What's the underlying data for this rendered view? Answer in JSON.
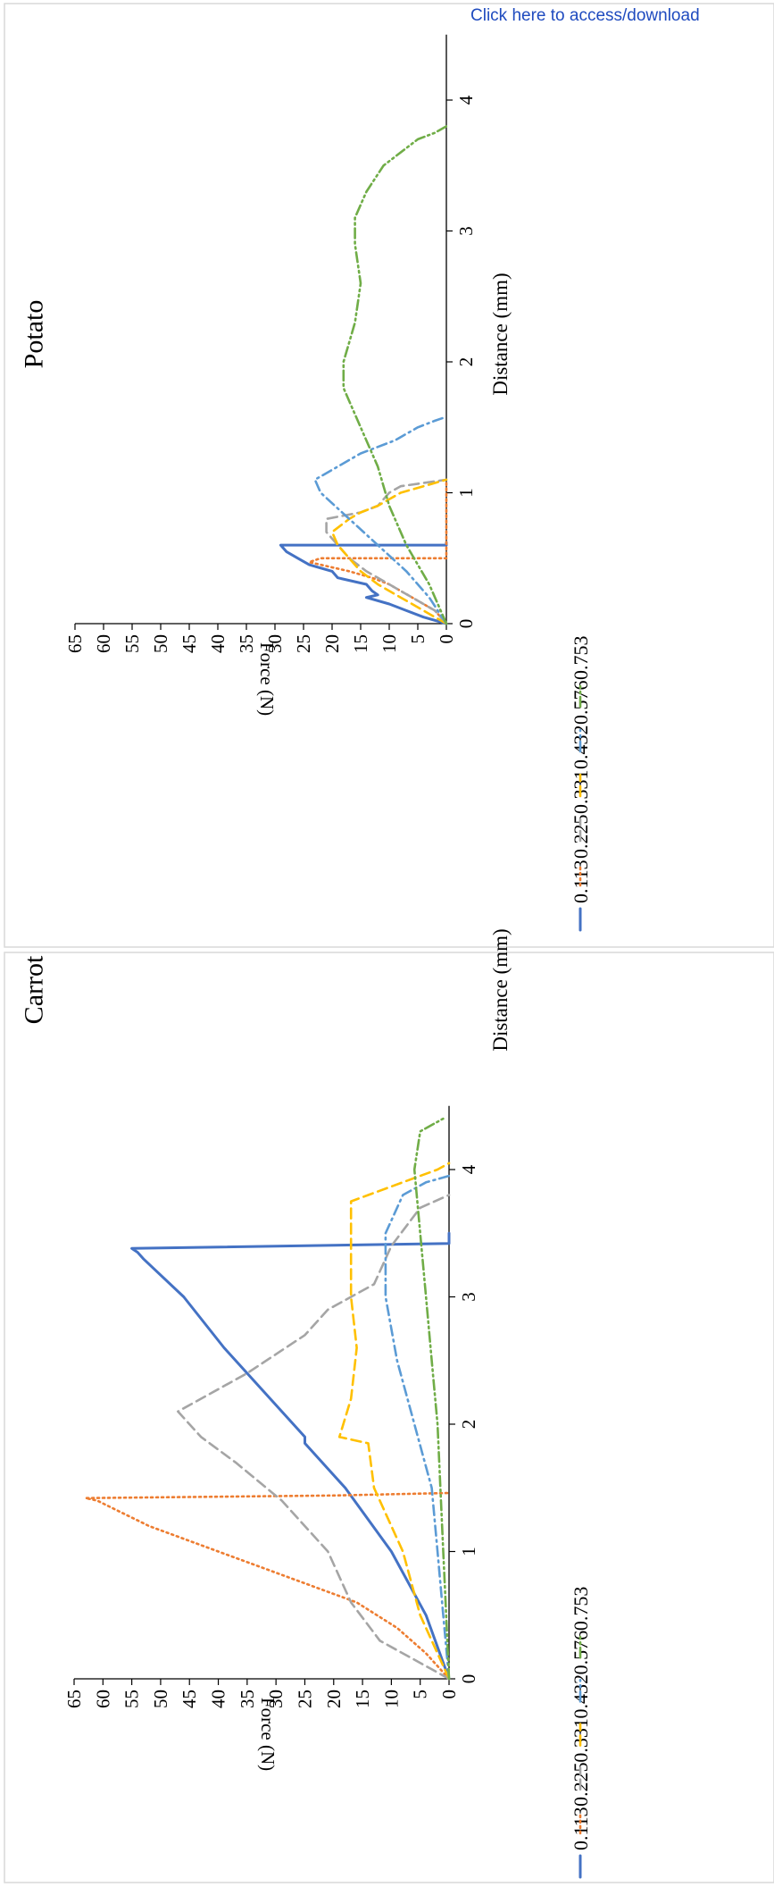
{
  "header": {
    "link_text": "Click here to access/download"
  },
  "chart_data": [
    {
      "type": "line",
      "title": "Potato",
      "xlabel": "Distance (mm)",
      "ylabel": "Force (N)",
      "xlim": [
        0,
        4.5
      ],
      "ylim": [
        0,
        65
      ],
      "xticks": [
        0,
        1,
        2,
        3,
        4
      ],
      "yticks": [
        0,
        5,
        10,
        15,
        20,
        25,
        30,
        35,
        40,
        45,
        50,
        55,
        60,
        65
      ],
      "legend_position": "bottom",
      "series": [
        {
          "name": "0.113",
          "color": "#4472c4",
          "dash": "solid",
          "x": [
            0,
            0.05,
            0.1,
            0.15,
            0.2,
            0.22,
            0.25,
            0.3,
            0.35,
            0.4,
            0.45,
            0.5,
            0.55,
            0.6,
            0.6,
            0.62
          ],
          "y": [
            0,
            4,
            7,
            10,
            14,
            12,
            13,
            14,
            19,
            20,
            24,
            26,
            28,
            29,
            0,
            0
          ]
        },
        {
          "name": "0.225",
          "color": "#ed7d31",
          "dash": "dot",
          "x": [
            0,
            0.1,
            0.2,
            0.3,
            0.35,
            0.4,
            0.45,
            0.47,
            0.5,
            0.5,
            1.1
          ],
          "y": [
            0,
            2,
            6,
            10,
            13,
            17,
            22,
            24,
            22,
            0,
            0
          ]
        },
        {
          "name": "0.331",
          "color": "#a5a5a5",
          "dash": "dash",
          "x": [
            0,
            0.1,
            0.2,
            0.3,
            0.4,
            0.5,
            0.6,
            0.7,
            0.8,
            0.85,
            0.9,
            0.95,
            1.0,
            1.05,
            1.1
          ],
          "y": [
            0,
            2,
            6,
            10,
            14,
            17,
            19,
            21,
            21,
            15,
            12,
            11,
            10,
            8,
            0
          ]
        },
        {
          "name": "0.432",
          "color": "#ffc000",
          "dash": "dash",
          "x": [
            0,
            0.1,
            0.2,
            0.3,
            0.4,
            0.5,
            0.6,
            0.7,
            0.8,
            0.85,
            0.9,
            0.95,
            1.0,
            1.05,
            1.1
          ],
          "y": [
            0,
            4,
            8,
            12,
            15,
            17,
            19,
            20,
            17,
            15,
            12,
            10,
            8,
            4,
            0
          ]
        },
        {
          "name": "0.576",
          "color": "#5b9bd5",
          "dash": "dashdot",
          "x": [
            0,
            0.2,
            0.4,
            0.6,
            0.8,
            1.0,
            1.1,
            1.2,
            1.3,
            1.4,
            1.5,
            1.55,
            1.58
          ],
          "y": [
            0,
            3,
            7,
            12,
            17,
            22,
            23,
            19,
            15,
            9,
            5,
            2,
            0
          ]
        },
        {
          "name": "0.753",
          "color": "#70ad47",
          "dash": "dashdotdot",
          "x": [
            0,
            0.3,
            0.6,
            0.9,
            1.2,
            1.5,
            1.8,
            2.0,
            2.3,
            2.6,
            2.9,
            3.1,
            3.3,
            3.5,
            3.7,
            3.75,
            3.8
          ],
          "y": [
            0,
            3,
            7,
            10,
            12,
            15,
            18,
            18,
            16,
            15,
            16,
            16,
            14,
            11,
            5,
            2,
            0
          ]
        }
      ]
    },
    {
      "type": "line",
      "title": "Carrot",
      "xlabel": "Distance (mm)",
      "ylabel": "Force (N)",
      "xlim": [
        0,
        4.5
      ],
      "ylim": [
        0,
        65
      ],
      "xticks": [
        0,
        1,
        2,
        3,
        4
      ],
      "yticks": [
        0,
        5,
        10,
        15,
        20,
        25,
        30,
        35,
        40,
        45,
        50,
        55,
        60,
        65
      ],
      "legend_position": "bottom",
      "series": [
        {
          "name": "0.113",
          "color": "#4472c4",
          "dash": "solid",
          "x": [
            0,
            0.5,
            1.0,
            1.5,
            1.85,
            1.9,
            2.2,
            2.6,
            3.0,
            3.3,
            3.35,
            3.38,
            3.42,
            3.5
          ],
          "y": [
            0,
            4,
            10,
            18,
            25,
            25,
            31,
            39,
            46,
            53,
            54,
            55,
            0,
            0
          ]
        },
        {
          "name": "0.225",
          "color": "#ed7d31",
          "dash": "dot",
          "x": [
            0,
            0.2,
            0.4,
            0.6,
            0.8,
            1.0,
            1.2,
            1.4,
            1.42,
            1.44,
            1.46
          ],
          "y": [
            0,
            4,
            9,
            16,
            28,
            40,
            52,
            61,
            63,
            20,
            0
          ]
        },
        {
          "name": "0.331",
          "color": "#a5a5a5",
          "dash": "dash",
          "x": [
            0,
            0.3,
            0.6,
            1.0,
            1.4,
            1.7,
            1.9,
            2.1,
            2.4,
            2.7,
            2.9,
            3.1,
            3.2,
            3.4,
            3.7,
            3.8
          ],
          "y": [
            0,
            12,
            17,
            21,
            29,
            37,
            43,
            47,
            35,
            25,
            21,
            13,
            12,
            10,
            5,
            0
          ]
        },
        {
          "name": "0.432",
          "color": "#ffc000",
          "dash": "dash",
          "x": [
            0,
            0.5,
            1.0,
            1.5,
            1.85,
            1.9,
            2.2,
            2.6,
            3.0,
            3.5,
            3.75,
            3.8,
            3.95,
            4.0,
            4.05
          ],
          "y": [
            0,
            5,
            8,
            13,
            14,
            19,
            17,
            16,
            17,
            17,
            17,
            14,
            5,
            2,
            0
          ]
        },
        {
          "name": "0.576",
          "color": "#5b9bd5",
          "dash": "dashdot",
          "x": [
            0,
            0.5,
            1.0,
            1.5,
            2.0,
            2.5,
            3.0,
            3.5,
            3.8,
            3.9,
            3.95
          ],
          "y": [
            0,
            1,
            2,
            3,
            6,
            9,
            11,
            11,
            8,
            4,
            0
          ]
        },
        {
          "name": "0.753",
          "color": "#70ad47",
          "dash": "dashdotdot",
          "x": [
            0,
            0.5,
            1.0,
            1.5,
            2.0,
            2.5,
            3.0,
            3.5,
            4.0,
            4.3,
            4.4
          ],
          "y": [
            0,
            0.5,
            1,
            1.5,
            2,
            3,
            4,
            5,
            6,
            5,
            1
          ]
        }
      ]
    }
  ]
}
